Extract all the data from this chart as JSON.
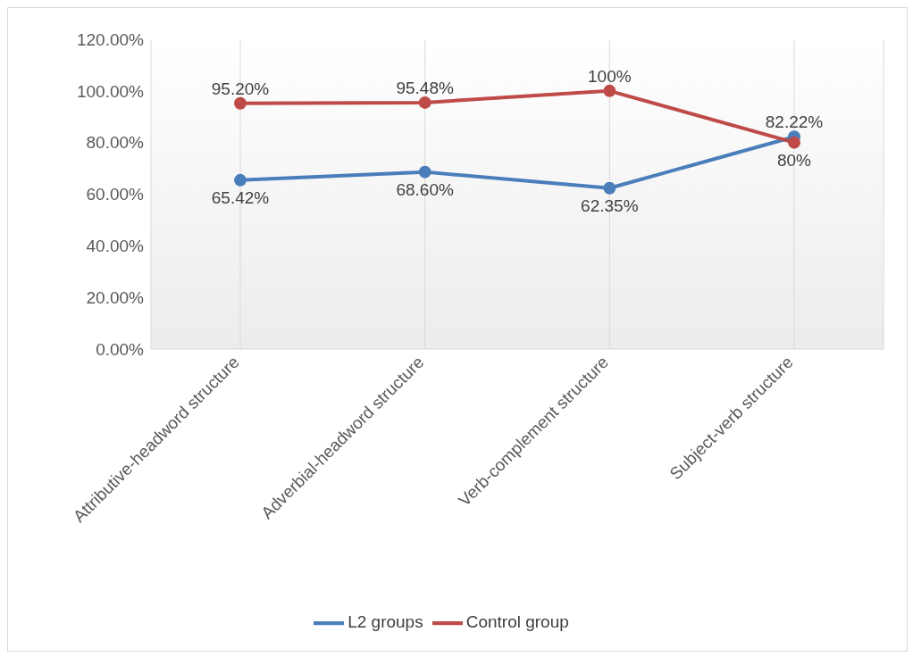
{
  "chart_data": {
    "type": "line",
    "categories": [
      "Attributive-headword structure",
      "Adverbial-headword structure",
      "Verb-complement structure",
      "Subject-verb structure"
    ],
    "series": [
      {
        "name": "L2 groups",
        "color": "#4a7ebb",
        "values": [
          65.42,
          68.6,
          62.35,
          82.22
        ],
        "value_labels": [
          "65.42%",
          "68.60%",
          "62.35%",
          "82.22%"
        ]
      },
      {
        "name": "Control group",
        "color": "#be4b48",
        "values": [
          95.2,
          95.48,
          100,
          80
        ],
        "value_labels": [
          "95.20%",
          "95.48%",
          "100%",
          "80%"
        ]
      }
    ],
    "ylim": [
      0,
      120
    ],
    "yticks": [
      {
        "value": 0,
        "label": "0.00%"
      },
      {
        "value": 20,
        "label": "20.00%"
      },
      {
        "value": 40,
        "label": "40.00%"
      },
      {
        "value": 60,
        "label": "60.00%"
      },
      {
        "value": 80,
        "label": "80.00%"
      },
      {
        "value": 100,
        "label": "100.00%"
      },
      {
        "value": 120,
        "label": "120.00%"
      }
    ],
    "grid": "x",
    "legend": "bottom",
    "marker": "circle",
    "line_style": "solid"
  }
}
